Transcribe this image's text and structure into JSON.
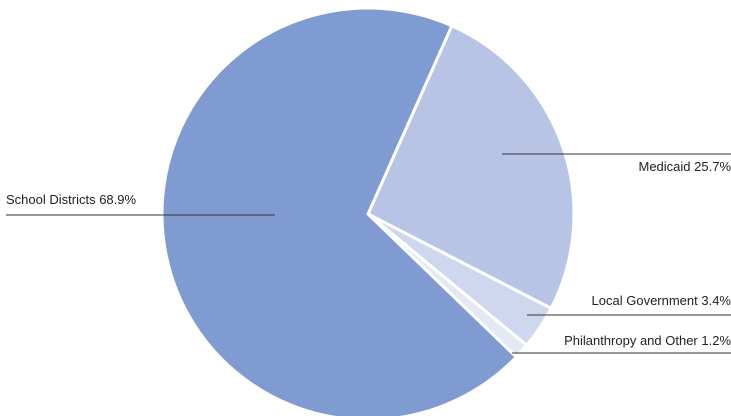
{
  "chart_data": {
    "type": "pie",
    "slices": [
      {
        "label": "School Districts 68.9%",
        "value": 68.9,
        "color": "#7f9bd1"
      },
      {
        "label": "Medicaid 25.7%",
        "value": 25.7,
        "color": "#b8c4e5"
      },
      {
        "label": "Local Government 3.4%",
        "value": 3.4,
        "color": "#cfd7ee"
      },
      {
        "label": "Philanthropy and Other 1.2%",
        "value": 1.2,
        "color": "#e3e8f5"
      }
    ],
    "start_angle_deg": 24,
    "direction": "clockwise",
    "legend": "none"
  }
}
